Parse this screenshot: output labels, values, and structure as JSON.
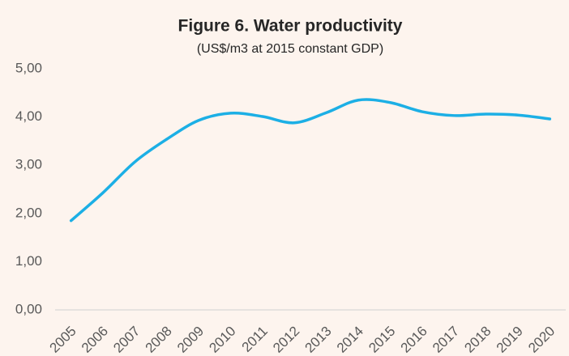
{
  "chart_data": {
    "type": "line",
    "title": "Figure 6. Water productivity",
    "subtitle": "(US$/m3 at 2015 constant GDP)",
    "categories": [
      "2005",
      "2006",
      "2007",
      "2008",
      "2009",
      "2010",
      "2011",
      "2012",
      "2013",
      "2014",
      "2015",
      "2016",
      "2017",
      "2018",
      "2019",
      "2020"
    ],
    "series": [
      {
        "name": "Water productivity",
        "color": "#1cafe5",
        "values": [
          1.85,
          2.43,
          3.07,
          3.54,
          3.93,
          4.08,
          4.01,
          3.88,
          4.09,
          4.35,
          4.3,
          4.11,
          4.03,
          4.06,
          4.04,
          3.96
        ]
      }
    ],
    "ylim": [
      0,
      5
    ],
    "yticks": [
      {
        "value": 0,
        "label": "0,00"
      },
      {
        "value": 1,
        "label": "1,00"
      },
      {
        "value": 2,
        "label": "2,00"
      },
      {
        "value": 3,
        "label": "3,00"
      },
      {
        "value": 4,
        "label": "4,00"
      },
      {
        "value": 5,
        "label": "5,00"
      }
    ],
    "grid": false
  }
}
